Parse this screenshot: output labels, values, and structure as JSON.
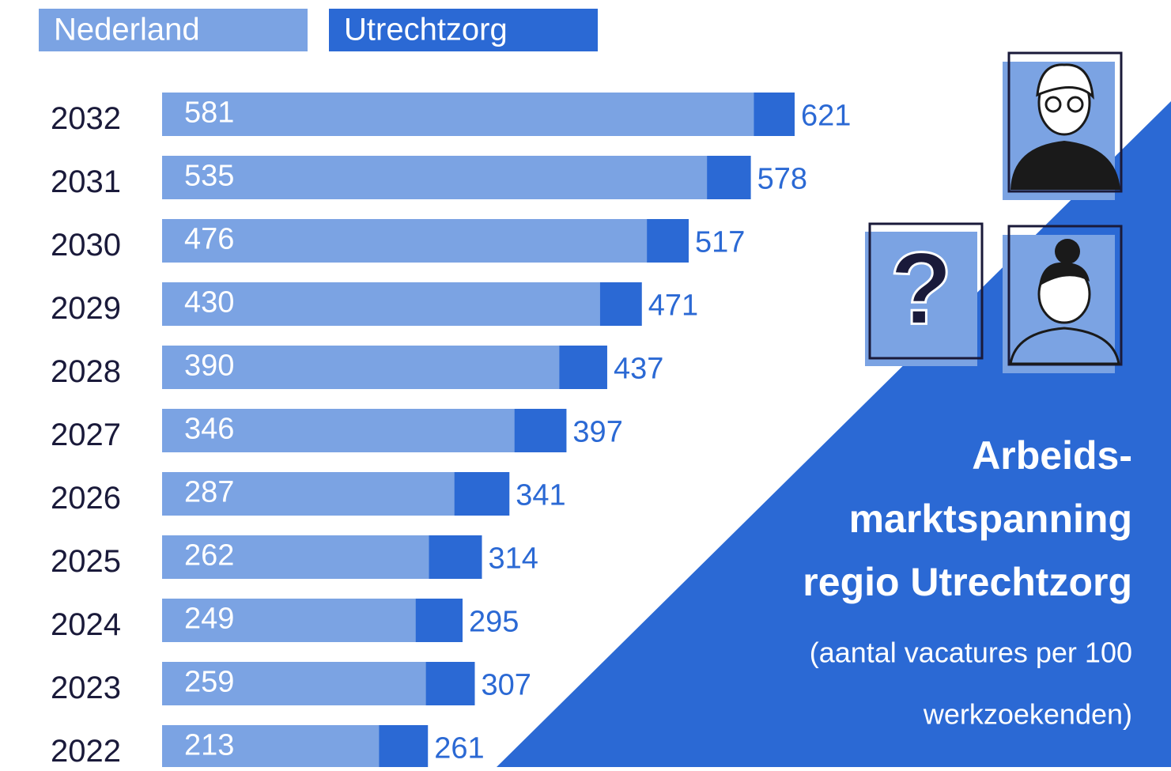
{
  "chart_data": {
    "type": "bar",
    "orientation": "horizontal",
    "overlay": true,
    "title": [
      "Arbeids-",
      "marktspanning",
      "regio Utrechtzorg"
    ],
    "subtitle": [
      "(aantal vacatures per 100",
      "werkzoekenden)"
    ],
    "categories": [
      "2032",
      "2031",
      "2030",
      "2029",
      "2028",
      "2027",
      "2026",
      "2025",
      "2024",
      "2023",
      "2022"
    ],
    "series": [
      {
        "name": "Nederland",
        "color": "#7ba3e3",
        "values": [
          581,
          535,
          476,
          430,
          390,
          346,
          287,
          262,
          249,
          259,
          213
        ]
      },
      {
        "name": "Utrechtzorg",
        "color": "#2b69d4",
        "values": [
          621,
          578,
          517,
          471,
          437,
          397,
          341,
          314,
          295,
          307,
          261
        ]
      }
    ],
    "legend": "top-left",
    "grid": false
  }
}
